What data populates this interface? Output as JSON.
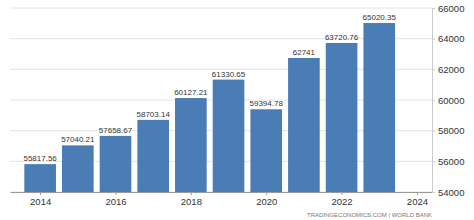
{
  "chart_data": {
    "type": "bar",
    "x": [
      2014,
      2015,
      2016,
      2017,
      2018,
      2019,
      2020,
      2021,
      2022,
      2023
    ],
    "values": [
      55817.56,
      57040.21,
      57658.67,
      58703.14,
      60127.21,
      61330.65,
      59394.78,
      62741,
      63720.76,
      65020.35
    ],
    "color": "#4a7db5",
    "xlim": [
      2013.2,
      2024.4
    ],
    "xticks": [
      2014,
      2016,
      2018,
      2020,
      2022,
      2024
    ],
    "ylim": [
      54000,
      66000
    ],
    "yticks": [
      54000,
      56000,
      58000,
      60000,
      62000,
      64000,
      66000
    ],
    "grid": true,
    "data_labels": true,
    "source": "TRADINGECONOMICS.COM | WORLD BANK"
  }
}
